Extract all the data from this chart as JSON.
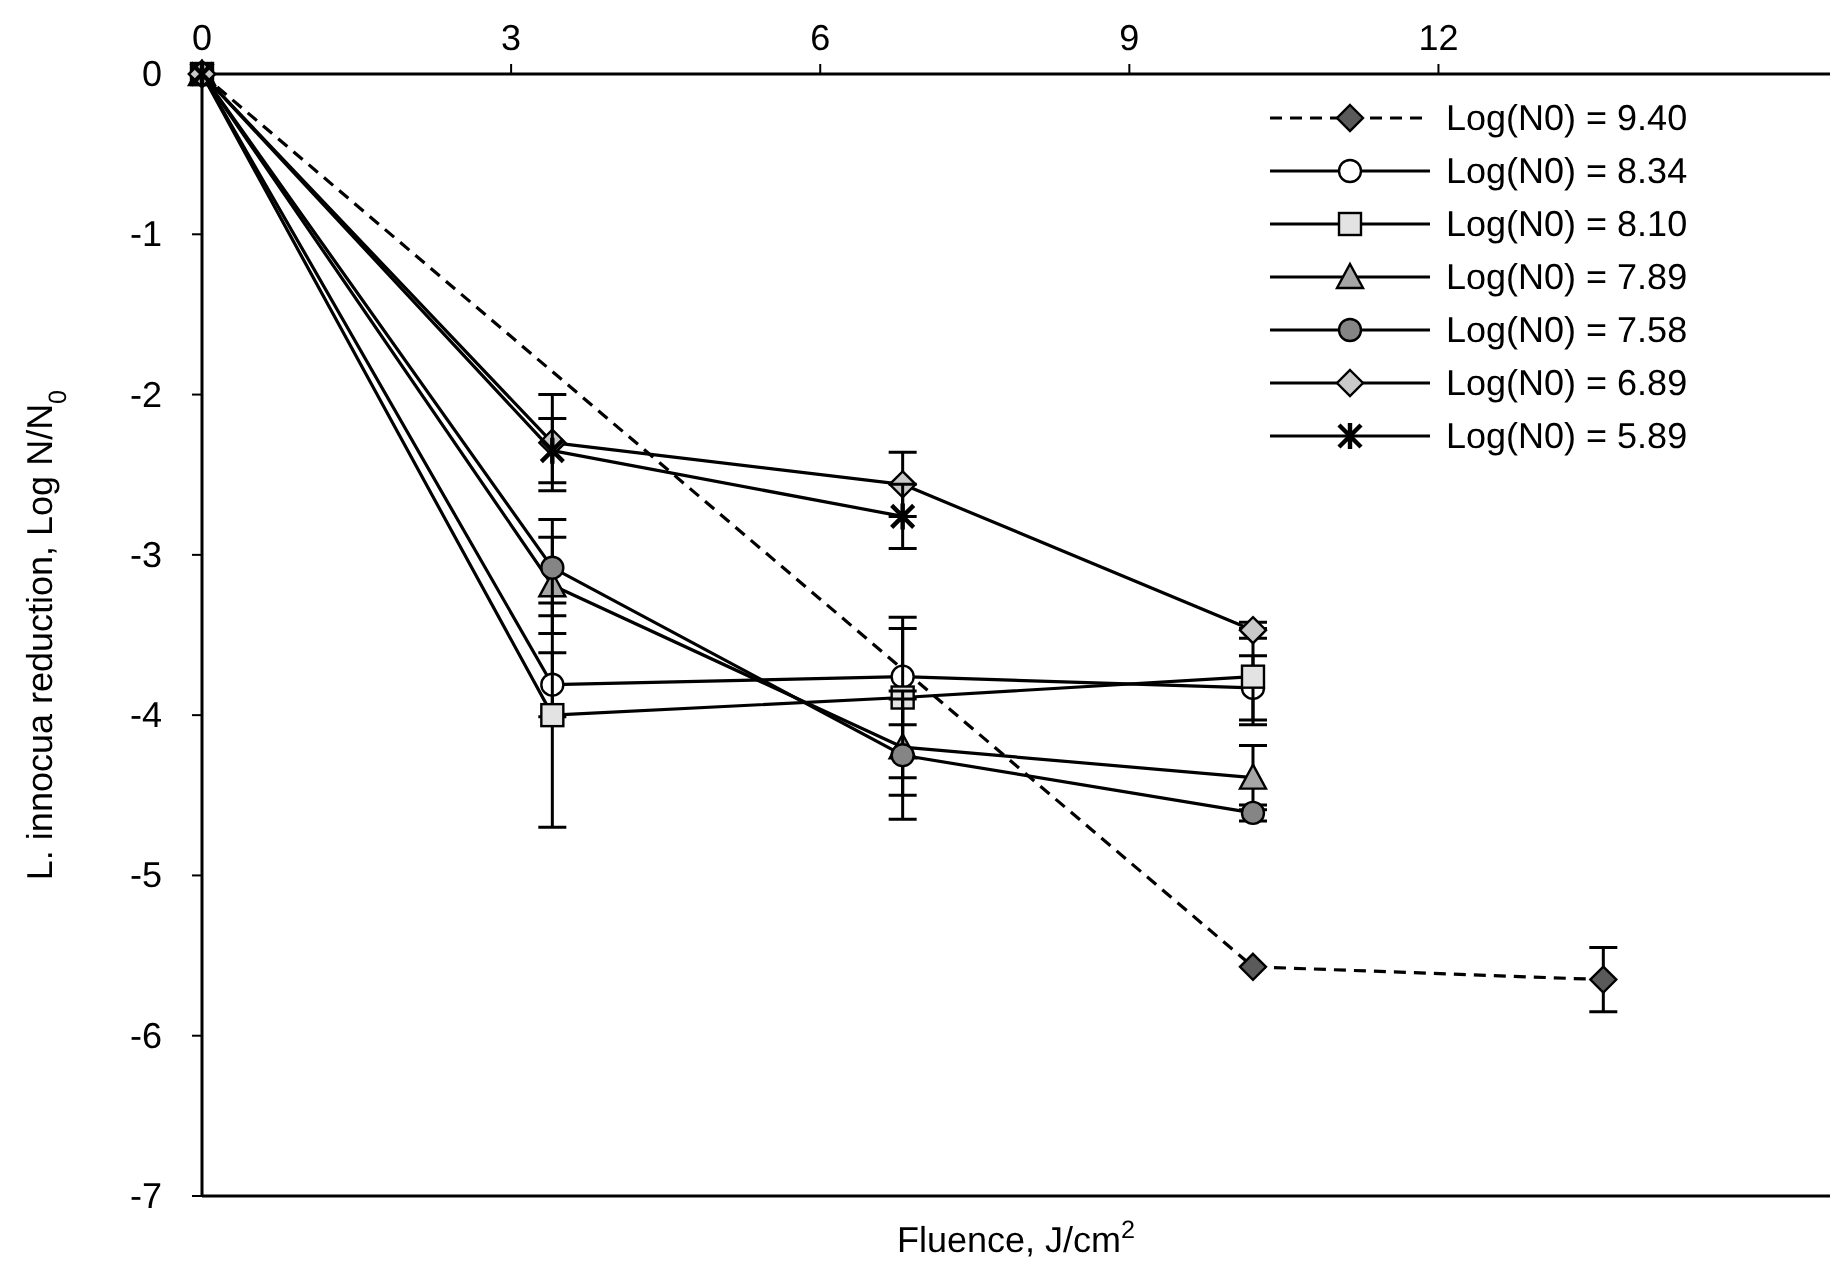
{
  "chart_data": {
    "type": "line",
    "xlabel": "Fluence, J/cm$^{2}$",
    "ylabel": "L. innocua reduction, Log N/N$_{0}$",
    "xlim": [
      0,
      15.8
    ],
    "xticks": [
      0,
      3,
      6,
      9,
      12
    ],
    "ylim": [
      -7,
      0
    ],
    "yticks": [
      0,
      -1,
      -2,
      -3,
      -4,
      -5,
      -6,
      -7
    ],
    "grid": false,
    "legend": "top right",
    "series": [
      {
        "name": "Log(N0) = 9.40",
        "color": "#5a5a5a",
        "marker": "diamond",
        "line_style": "dashed",
        "x": [
          0,
          10.2,
          13.6
        ],
        "values": [
          0,
          -5.57,
          -5.65
        ],
        "errors": [
          null,
          null,
          0.2
        ]
      },
      {
        "name": "Log(N0) = 8.34",
        "color": "#ffffff",
        "marker": "circle",
        "line_style": "solid",
        "x": [
          0,
          3.4,
          6.8,
          10.2
        ],
        "values": [
          0,
          -3.81,
          -3.76,
          -3.83
        ],
        "errors": [
          null,
          0.2,
          0.3,
          0.2
        ]
      },
      {
        "name": "Log(N0) = 8.10",
        "color": "#e3e3e3",
        "marker": "square",
        "line_style": "solid",
        "x": [
          0,
          3.4,
          6.8,
          10.2
        ],
        "values": [
          0,
          -4.0,
          -3.89,
          -3.76
        ],
        "errors": [
          null,
          0.7,
          0.5,
          0.3
        ]
      },
      {
        "name": "Log(N0) = 7.89",
        "color": "#a6a6a6",
        "marker": "triangle",
        "line_style": "solid",
        "x": [
          0,
          3.4,
          6.8,
          10.2
        ],
        "values": [
          0,
          -3.19,
          -4.2,
          -4.39
        ],
        "errors": [
          null,
          0.3,
          0.3,
          0.2
        ]
      },
      {
        "name": "Log(N0) = 7.58",
        "color": "#858585",
        "marker": "circle",
        "line_style": "solid",
        "x": [
          0,
          3.4,
          6.8,
          10.2
        ],
        "values": [
          0,
          -3.08,
          -4.25,
          -4.61
        ],
        "errors": [
          null,
          0.3,
          0.4,
          0.05
        ]
      },
      {
        "name": "Log(N0) = 6.89",
        "color": "#c9c9c9",
        "marker": "diamond",
        "line_style": "solid",
        "x": [
          0,
          3.4,
          6.8,
          10.2
        ],
        "values": [
          0,
          -2.3,
          -2.56,
          -3.47
        ],
        "errors": [
          null,
          0.3,
          0.2,
          0.05
        ]
      },
      {
        "name": "Log(N0) = 5.89",
        "color": "#000000",
        "marker": "cross",
        "line_style": "solid",
        "x": [
          0,
          3.4,
          6.8
        ],
        "values": [
          0,
          -2.35,
          -2.76
        ],
        "errors": [
          null,
          0.2,
          0.2
        ]
      }
    ]
  }
}
